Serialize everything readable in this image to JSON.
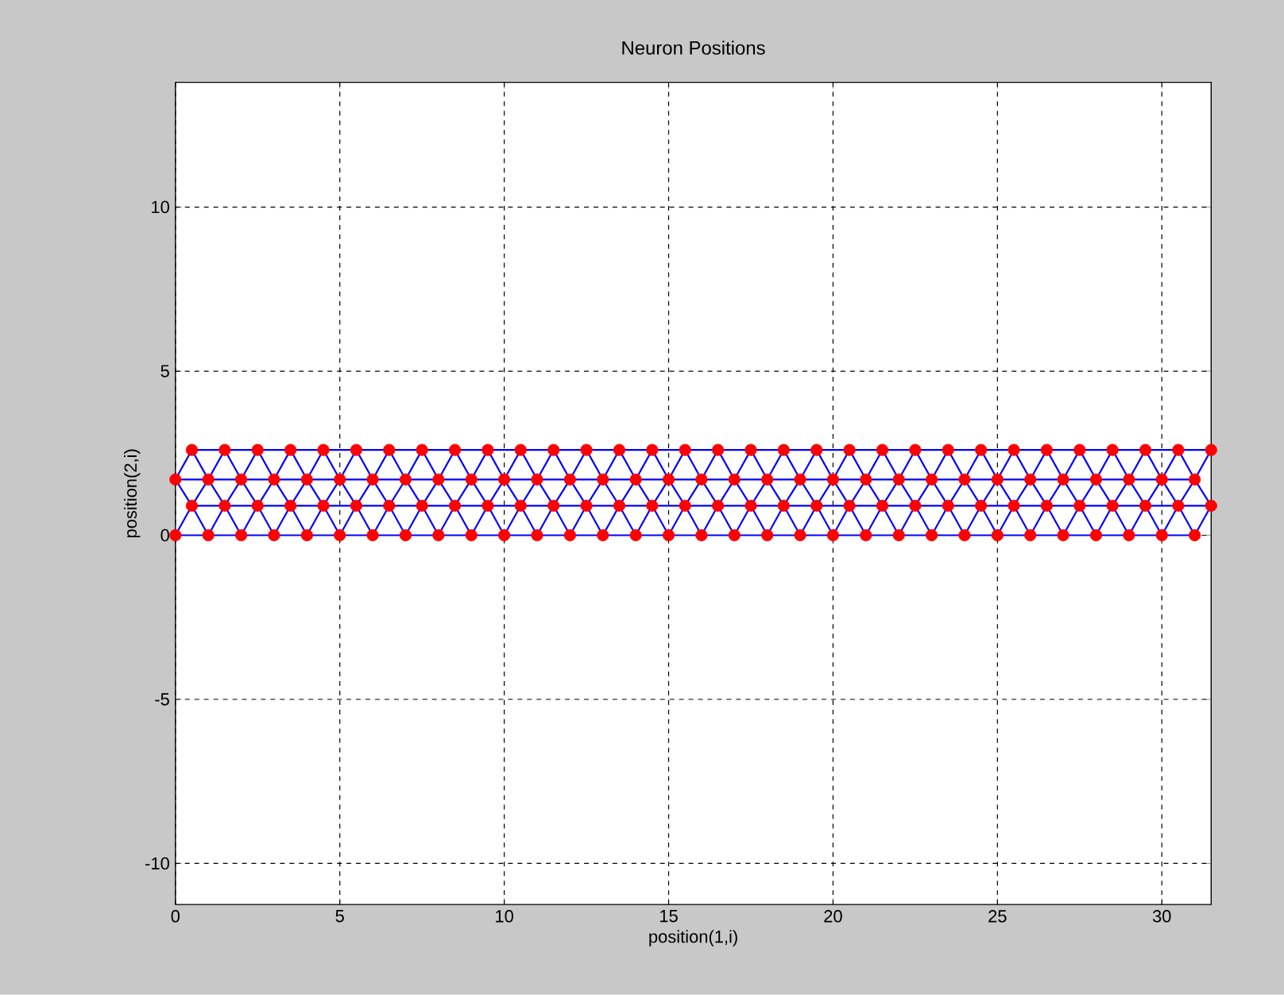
{
  "chart_data": {
    "type": "scatter",
    "title": "Neuron Positions",
    "xlabel": "position(1,i)",
    "ylabel": "position(2,i)",
    "xlim": [
      0,
      31.5
    ],
    "ylim": [
      -11.25,
      13.8
    ],
    "xticks": [
      0,
      5,
      10,
      15,
      20,
      25,
      30
    ],
    "yticks": [
      -10,
      -5,
      0,
      5,
      10
    ],
    "grid": true,
    "series": [
      {
        "type": "line",
        "color": "#0000ff",
        "marker": "none",
        "x": [
          0,
          31
        ],
        "values": [
          0,
          0
        ]
      },
      {
        "type": "line",
        "color": "#0000ff",
        "marker": "none",
        "x": [
          0.5,
          31.5
        ],
        "values": [
          0.9,
          0.9
        ]
      },
      {
        "type": "line",
        "color": "#0000ff",
        "marker": "none",
        "x": [
          0,
          31
        ],
        "values": [
          1.7,
          1.7
        ]
      },
      {
        "type": "line",
        "color": "#0000ff",
        "marker": "none",
        "x": [
          0.5,
          31.5
        ],
        "values": [
          2.6,
          2.6
        ]
      },
      {
        "type": "line",
        "color": "#0000ff",
        "marker": "none",
        "x": [
          0,
          0.5,
          1,
          1.5,
          2,
          2.5,
          3,
          3.5,
          4,
          4.5,
          5,
          5.5,
          6,
          6.5,
          7,
          7.5,
          8,
          8.5,
          9,
          9.5,
          10,
          10.5,
          11,
          11.5,
          12,
          12.5,
          13,
          13.5,
          14,
          14.5,
          15,
          15.5,
          16,
          16.5,
          17,
          17.5,
          18,
          18.5,
          19,
          19.5,
          20,
          20.5,
          21,
          21.5,
          22,
          22.5,
          23,
          23.5,
          24,
          24.5,
          25,
          25.5,
          26,
          26.5,
          27,
          27.5,
          28,
          28.5,
          29,
          29.5,
          30,
          30.5,
          31,
          31.5
        ],
        "values": [
          0,
          0.9,
          0,
          0.9,
          0,
          0.9,
          0,
          0.9,
          0,
          0.9,
          0,
          0.9,
          0,
          0.9,
          0,
          0.9,
          0,
          0.9,
          0,
          0.9,
          0,
          0.9,
          0,
          0.9,
          0,
          0.9,
          0,
          0.9,
          0,
          0.9,
          0,
          0.9,
          0,
          0.9,
          0,
          0.9,
          0,
          0.9,
          0,
          0.9,
          0,
          0.9,
          0,
          0.9,
          0,
          0.9,
          0,
          0.9,
          0,
          0.9,
          0,
          0.9,
          0,
          0.9,
          0,
          0.9,
          0,
          0.9,
          0,
          0.9,
          0,
          0.9,
          0,
          0.9
        ]
      },
      {
        "type": "line",
        "color": "#0000ff",
        "marker": "none",
        "x": [
          0,
          0.5,
          1,
          1.5,
          2,
          2.5,
          3,
          3.5,
          4,
          4.5,
          5,
          5.5,
          6,
          6.5,
          7,
          7.5,
          8,
          8.5,
          9,
          9.5,
          10,
          10.5,
          11,
          11.5,
          12,
          12.5,
          13,
          13.5,
          14,
          14.5,
          15,
          15.5,
          16,
          16.5,
          17,
          17.5,
          18,
          18.5,
          19,
          19.5,
          20,
          20.5,
          21,
          21.5,
          22,
          22.5,
          23,
          23.5,
          24,
          24.5,
          25,
          25.5,
          26,
          26.5,
          27,
          27.5,
          28,
          28.5,
          29,
          29.5,
          30,
          30.5,
          31,
          31.5
        ],
        "values": [
          1.7,
          0.9,
          1.7,
          0.9,
          1.7,
          0.9,
          1.7,
          0.9,
          1.7,
          0.9,
          1.7,
          0.9,
          1.7,
          0.9,
          1.7,
          0.9,
          1.7,
          0.9,
          1.7,
          0.9,
          1.7,
          0.9,
          1.7,
          0.9,
          1.7,
          0.9,
          1.7,
          0.9,
          1.7,
          0.9,
          1.7,
          0.9,
          1.7,
          0.9,
          1.7,
          0.9,
          1.7,
          0.9,
          1.7,
          0.9,
          1.7,
          0.9,
          1.7,
          0.9,
          1.7,
          0.9,
          1.7,
          0.9,
          1.7,
          0.9,
          1.7,
          0.9,
          1.7,
          0.9,
          1.7,
          0.9,
          1.7,
          0.9,
          1.7,
          0.9,
          1.7,
          0.9,
          1.7,
          0.9
        ]
      },
      {
        "type": "line",
        "color": "#0000ff",
        "marker": "none",
        "x": [
          0,
          0.5,
          1,
          1.5,
          2,
          2.5,
          3,
          3.5,
          4,
          4.5,
          5,
          5.5,
          6,
          6.5,
          7,
          7.5,
          8,
          8.5,
          9,
          9.5,
          10,
          10.5,
          11,
          11.5,
          12,
          12.5,
          13,
          13.5,
          14,
          14.5,
          15,
          15.5,
          16,
          16.5,
          17,
          17.5,
          18,
          18.5,
          19,
          19.5,
          20,
          20.5,
          21,
          21.5,
          22,
          22.5,
          23,
          23.5,
          24,
          24.5,
          25,
          25.5,
          26,
          26.5,
          27,
          27.5,
          28,
          28.5,
          29,
          29.5,
          30,
          30.5,
          31,
          31.5
        ],
        "values": [
          1.7,
          2.6,
          1.7,
          2.6,
          1.7,
          2.6,
          1.7,
          2.6,
          1.7,
          2.6,
          1.7,
          2.6,
          1.7,
          2.6,
          1.7,
          2.6,
          1.7,
          2.6,
          1.7,
          2.6,
          1.7,
          2.6,
          1.7,
          2.6,
          1.7,
          2.6,
          1.7,
          2.6,
          1.7,
          2.6,
          1.7,
          2.6,
          1.7,
          2.6,
          1.7,
          2.6,
          1.7,
          2.6,
          1.7,
          2.6,
          1.7,
          2.6,
          1.7,
          2.6,
          1.7,
          2.6,
          1.7,
          2.6,
          1.7,
          2.6,
          1.7,
          2.6,
          1.7,
          2.6,
          1.7,
          2.6,
          1.7,
          2.6,
          1.7,
          2.6,
          1.7,
          2.6,
          1.7,
          2.6
        ]
      },
      {
        "color": "#ff0000",
        "marker": "circle",
        "x": [
          0,
          1,
          2,
          3,
          4,
          5,
          6,
          7,
          8,
          9,
          10,
          11,
          12,
          13,
          14,
          15,
          16,
          17,
          18,
          19,
          20,
          21,
          22,
          23,
          24,
          25,
          26,
          27,
          28,
          29,
          30,
          31
        ],
        "values": [
          0,
          0,
          0,
          0,
          0,
          0,
          0,
          0,
          0,
          0,
          0,
          0,
          0,
          0,
          0,
          0,
          0,
          0,
          0,
          0,
          0,
          0,
          0,
          0,
          0,
          0,
          0,
          0,
          0,
          0,
          0,
          0
        ]
      },
      {
        "color": "#ff0000",
        "marker": "circle",
        "x": [
          0.5,
          1.5,
          2.5,
          3.5,
          4.5,
          5.5,
          6.5,
          7.5,
          8.5,
          9.5,
          10.5,
          11.5,
          12.5,
          13.5,
          14.5,
          15.5,
          16.5,
          17.5,
          18.5,
          19.5,
          20.5,
          21.5,
          22.5,
          23.5,
          24.5,
          25.5,
          26.5,
          27.5,
          28.5,
          29.5,
          30.5,
          31.5
        ],
        "values": [
          0.9,
          0.9,
          0.9,
          0.9,
          0.9,
          0.9,
          0.9,
          0.9,
          0.9,
          0.9,
          0.9,
          0.9,
          0.9,
          0.9,
          0.9,
          0.9,
          0.9,
          0.9,
          0.9,
          0.9,
          0.9,
          0.9,
          0.9,
          0.9,
          0.9,
          0.9,
          0.9,
          0.9,
          0.9,
          0.9,
          0.9,
          0.9
        ]
      },
      {
        "color": "#ff0000",
        "marker": "circle",
        "x": [
          0,
          1,
          2,
          3,
          4,
          5,
          6,
          7,
          8,
          9,
          10,
          11,
          12,
          13,
          14,
          15,
          16,
          17,
          18,
          19,
          20,
          21,
          22,
          23,
          24,
          25,
          26,
          27,
          28,
          29,
          30,
          31
        ],
        "values": [
          1.7,
          1.7,
          1.7,
          1.7,
          1.7,
          1.7,
          1.7,
          1.7,
          1.7,
          1.7,
          1.7,
          1.7,
          1.7,
          1.7,
          1.7,
          1.7,
          1.7,
          1.7,
          1.7,
          1.7,
          1.7,
          1.7,
          1.7,
          1.7,
          1.7,
          1.7,
          1.7,
          1.7,
          1.7,
          1.7,
          1.7,
          1.7
        ]
      },
      {
        "color": "#ff0000",
        "marker": "circle",
        "x": [
          0.5,
          1.5,
          2.5,
          3.5,
          4.5,
          5.5,
          6.5,
          7.5,
          8.5,
          9.5,
          10.5,
          11.5,
          12.5,
          13.5,
          14.5,
          15.5,
          16.5,
          17.5,
          18.5,
          19.5,
          20.5,
          21.5,
          22.5,
          23.5,
          24.5,
          25.5,
          26.5,
          27.5,
          28.5,
          29.5,
          30.5,
          31.5
        ],
        "values": [
          2.6,
          2.6,
          2.6,
          2.6,
          2.6,
          2.6,
          2.6,
          2.6,
          2.6,
          2.6,
          2.6,
          2.6,
          2.6,
          2.6,
          2.6,
          2.6,
          2.6,
          2.6,
          2.6,
          2.6,
          2.6,
          2.6,
          2.6,
          2.6,
          2.6,
          2.6,
          2.6,
          2.6,
          2.6,
          2.6,
          2.6,
          2.6
        ]
      }
    ]
  }
}
